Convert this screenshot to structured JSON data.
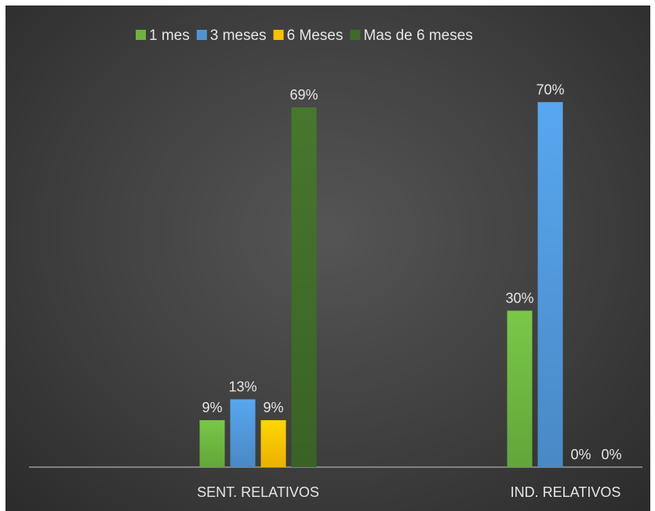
{
  "chart_data": {
    "type": "bar",
    "title": "",
    "xlabel": "",
    "ylabel": "",
    "ylim": [
      0,
      0.72
    ],
    "grid": false,
    "legend_position": "top",
    "categories": [
      "SENT. RELATIVOS",
      "IND. RELATIVOS"
    ],
    "series": [
      {
        "name": "1 mes",
        "values": [
          0.09,
          0.3
        ],
        "labels": [
          "9%",
          "30%"
        ],
        "color": "#6cb33f"
      },
      {
        "name": "3 meses",
        "values": [
          0.13,
          0.7
        ],
        "labels": [
          "13%",
          "70%"
        ],
        "color": "#4f95d6"
      },
      {
        "name": "6 Meses",
        "values": [
          0.09,
          0.0
        ],
        "labels": [
          "9%",
          "0%"
        ],
        "color": "#ffc000"
      },
      {
        "name": "Mas de 6 meses",
        "values": [
          0.69,
          0.0
        ],
        "labels": [
          "69%",
          "0%"
        ],
        "color": "#3f6a28"
      }
    ]
  }
}
